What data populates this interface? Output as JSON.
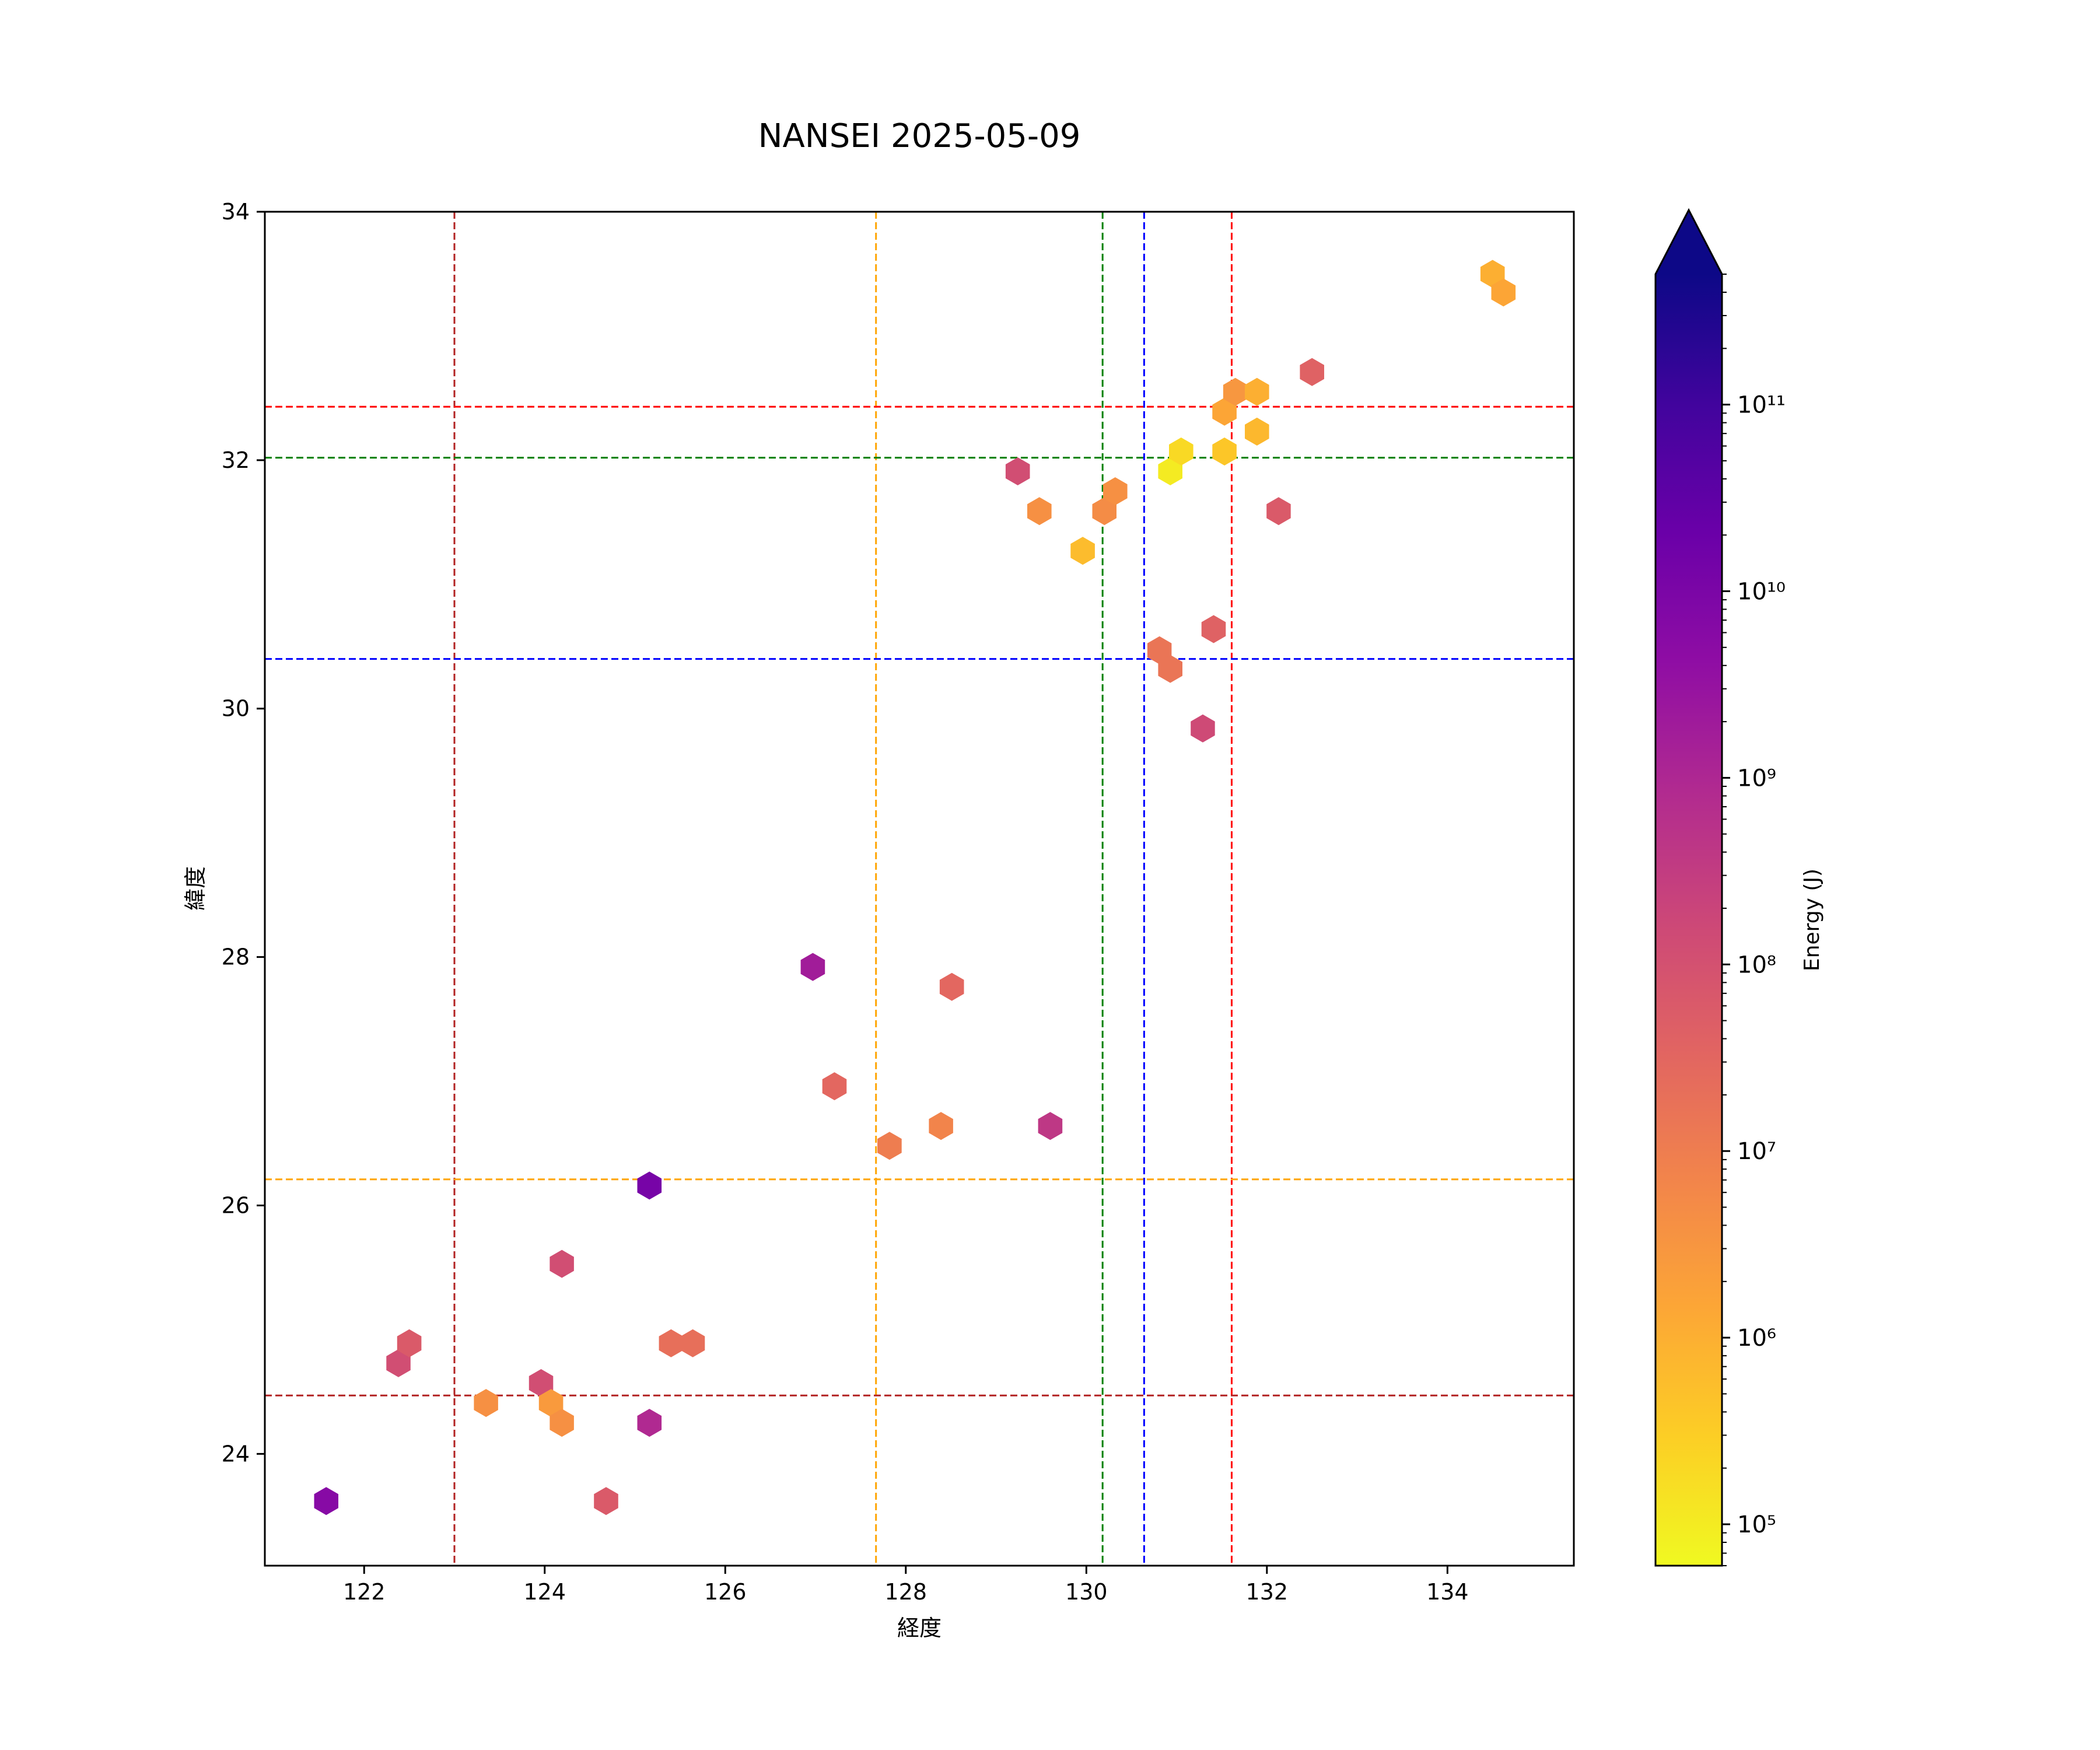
{
  "chart_data": {
    "type": "scatter",
    "marker": "hexagon",
    "title": "NANSEI 2025-05-09",
    "xlabel": "経度",
    "ylabel": "緯度",
    "xlim": [
      120.9,
      135.4
    ],
    "ylim": [
      23.1,
      34.0
    ],
    "xticks": [
      122,
      124,
      126,
      128,
      130,
      132,
      134
    ],
    "yticks": [
      24,
      26,
      28,
      30,
      32,
      34
    ],
    "grid": false,
    "colorbar": {
      "label": "Energy (J)",
      "scale": "log",
      "colormap": "plasma_r",
      "range": [
        60000,
        500000000000
      ],
      "extend": "max",
      "ticks": [
        {
          "value": 100000,
          "label": "10⁵"
        },
        {
          "value": 1000000,
          "label": "10⁶"
        },
        {
          "value": 10000000,
          "label": "10⁷"
        },
        {
          "value": 100000000,
          "label": "10⁸"
        },
        {
          "value": 1000000000,
          "label": "10⁹"
        },
        {
          "value": 10000000000,
          "label": "10¹⁰"
        },
        {
          "value": 100000000000,
          "label": "10¹¹"
        }
      ],
      "stops": [
        "#f0f921",
        "#fcce25",
        "#fca636",
        "#f2844b",
        "#e16462",
        "#cc4778",
        "#b12a90",
        "#8f0da4",
        "#6a00a8",
        "#41049d",
        "#0d0887"
      ]
    },
    "reference_lines": [
      {
        "orientation": "vertical",
        "value": 123.0,
        "color": "#b22222"
      },
      {
        "orientation": "vertical",
        "value": 127.67,
        "color": "#ffa500"
      },
      {
        "orientation": "vertical",
        "value": 130.18,
        "color": "#008000"
      },
      {
        "orientation": "vertical",
        "value": 130.64,
        "color": "#0000ff"
      },
      {
        "orientation": "vertical",
        "value": 131.61,
        "color": "#ff0000"
      },
      {
        "orientation": "horizontal",
        "value": 32.43,
        "color": "#ff0000"
      },
      {
        "orientation": "horizontal",
        "value": 32.02,
        "color": "#008000"
      },
      {
        "orientation": "horizontal",
        "value": 30.4,
        "color": "#0000ff"
      },
      {
        "orientation": "horizontal",
        "value": 26.21,
        "color": "#ffa500"
      },
      {
        "orientation": "horizontal",
        "value": 24.47,
        "color": "#b22222"
      }
    ],
    "points": [
      {
        "x": 121.58,
        "y": 23.62,
        "energy": 6000000000
      },
      {
        "x": 122.38,
        "y": 24.73,
        "energy": 120000000
      },
      {
        "x": 122.5,
        "y": 24.89,
        "energy": 60000000
      },
      {
        "x": 123.35,
        "y": 24.41,
        "energy": 4000000
      },
      {
        "x": 123.96,
        "y": 24.57,
        "energy": 120000000
      },
      {
        "x": 124.07,
        "y": 24.41,
        "energy": 2500000
      },
      {
        "x": 124.19,
        "y": 24.25,
        "energy": 4000000
      },
      {
        "x": 124.19,
        "y": 25.53,
        "energy": 120000000
      },
      {
        "x": 124.68,
        "y": 23.62,
        "energy": 60000000
      },
      {
        "x": 125.16,
        "y": 24.25,
        "energy": 900000000
      },
      {
        "x": 125.16,
        "y": 26.16,
        "energy": 12000000000
      },
      {
        "x": 125.4,
        "y": 24.89,
        "energy": 20000000
      },
      {
        "x": 125.64,
        "y": 24.89,
        "energy": 20000000
      },
      {
        "x": 126.97,
        "y": 27.92,
        "energy": 1800000000
      },
      {
        "x": 127.21,
        "y": 26.96,
        "energy": 30000000
      },
      {
        "x": 127.82,
        "y": 26.48,
        "energy": 10000000
      },
      {
        "x": 128.39,
        "y": 26.64,
        "energy": 7000000
      },
      {
        "x": 128.51,
        "y": 27.76,
        "energy": 30000000
      },
      {
        "x": 129.24,
        "y": 31.91,
        "energy": 120000000
      },
      {
        "x": 129.48,
        "y": 31.59,
        "energy": 4000000
      },
      {
        "x": 129.6,
        "y": 26.64,
        "energy": 400000000
      },
      {
        "x": 129.96,
        "y": 31.27,
        "energy": 600000
      },
      {
        "x": 130.2,
        "y": 31.59,
        "energy": 5000000
      },
      {
        "x": 130.32,
        "y": 31.75,
        "energy": 4000000
      },
      {
        "x": 130.81,
        "y": 30.47,
        "energy": 15000000
      },
      {
        "x": 130.93,
        "y": 30.32,
        "energy": 15000000
      },
      {
        "x": 130.93,
        "y": 31.91,
        "energy": 100000
      },
      {
        "x": 131.05,
        "y": 32.07,
        "energy": 200000
      },
      {
        "x": 131.29,
        "y": 29.84,
        "energy": 150000000
      },
      {
        "x": 131.41,
        "y": 30.64,
        "energy": 40000000
      },
      {
        "x": 131.53,
        "y": 32.07,
        "energy": 400000
      },
      {
        "x": 131.53,
        "y": 32.39,
        "energy": 1500000
      },
      {
        "x": 131.65,
        "y": 32.55,
        "energy": 3000000
      },
      {
        "x": 131.89,
        "y": 32.23,
        "energy": 700000
      },
      {
        "x": 131.89,
        "y": 32.55,
        "energy": 1000000
      },
      {
        "x": 132.13,
        "y": 31.59,
        "energy": 60000000
      },
      {
        "x": 132.5,
        "y": 32.71,
        "energy": 40000000
      },
      {
        "x": 134.5,
        "y": 33.5,
        "energy": 1000000
      },
      {
        "x": 134.62,
        "y": 33.35,
        "energy": 1500000
      }
    ]
  }
}
